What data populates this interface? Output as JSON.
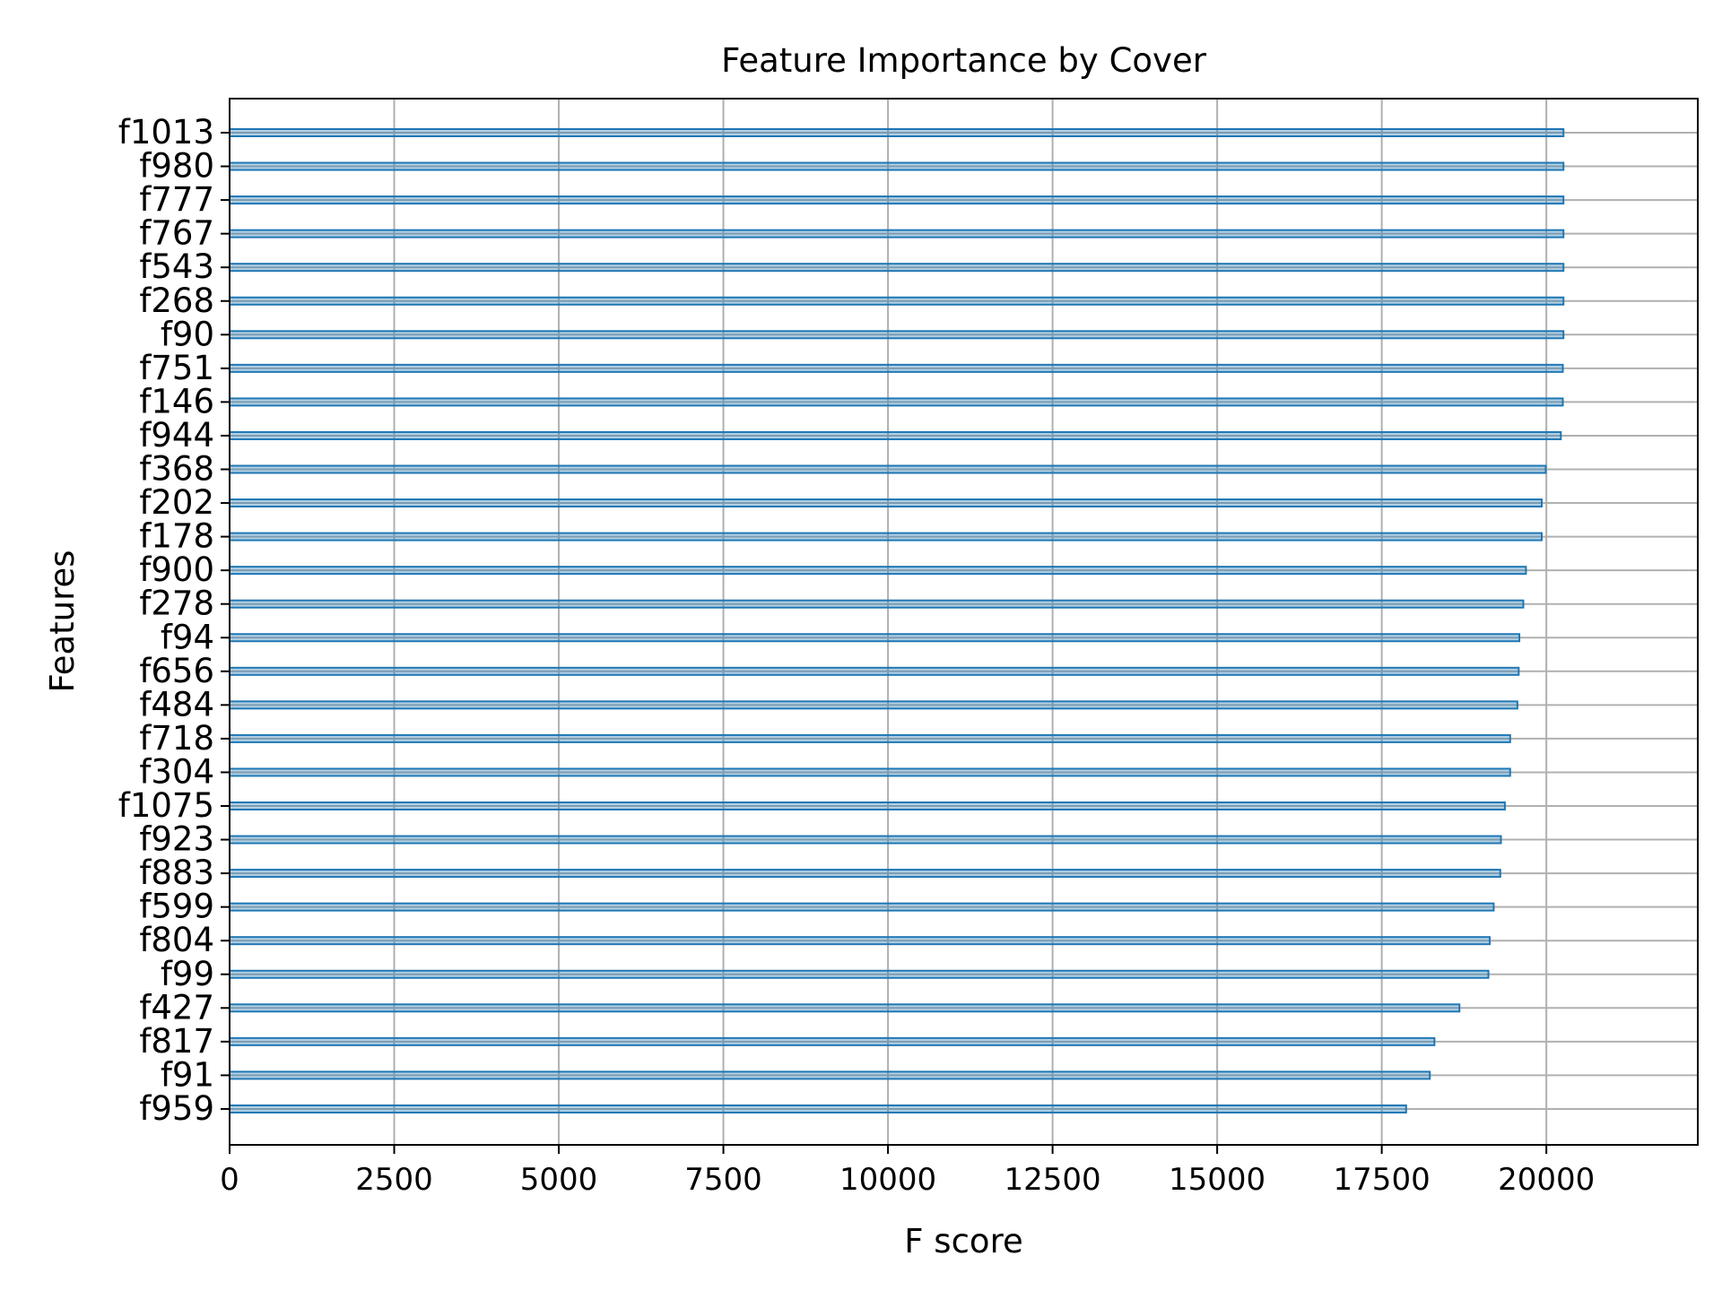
{
  "chart_data": {
    "type": "bar",
    "orientation": "horizontal",
    "title": "Feature Importance by Cover",
    "xlabel": "F score",
    "ylabel": "Features",
    "xlim": [
      0,
      22300
    ],
    "xticks": [
      0,
      2500,
      5000,
      7500,
      10000,
      12500,
      15000,
      17500,
      20000
    ],
    "grid": true,
    "categories": [
      "f1013",
      "f980",
      "f777",
      "f767",
      "f543",
      "f268",
      "f90",
      "f751",
      "f146",
      "f944",
      "f368",
      "f202",
      "f178",
      "f900",
      "f278",
      "f94",
      "f656",
      "f484",
      "f718",
      "f304",
      "f1075",
      "f923",
      "f883",
      "f599",
      "f804",
      "f99",
      "f427",
      "f817",
      "f91",
      "f959"
    ],
    "values": [
      20260,
      20260,
      20260,
      20260,
      20260,
      20260,
      20260,
      20250,
      20250,
      20220,
      19990,
      19930,
      19930,
      19690,
      19650,
      19590,
      19580,
      19560,
      19450,
      19450,
      19370,
      19310,
      19300,
      19200,
      19140,
      19120,
      18680,
      18300,
      18230,
      17870
    ],
    "colors": {
      "bar": "#1f77b4",
      "grid": "#b0b0b0",
      "axis": "#000000"
    }
  }
}
